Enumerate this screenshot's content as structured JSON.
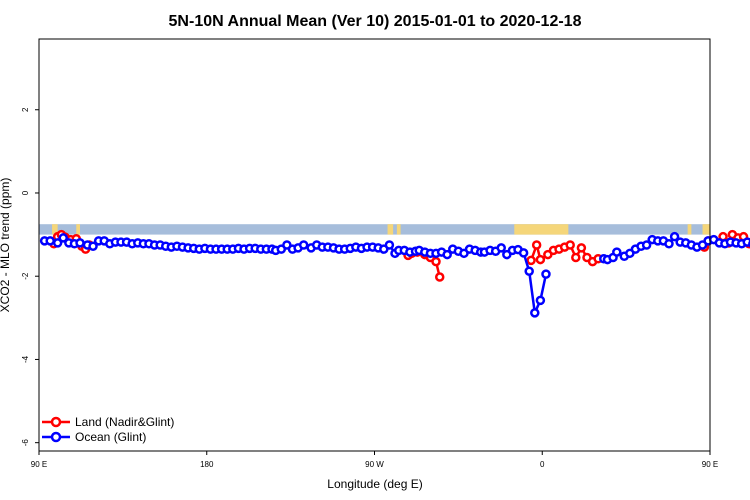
{
  "chart_data": {
    "type": "line",
    "title": "5N-10N Annual Mean (Ver 10)   2015-01-01 to 2020-12-18",
    "xlabel": "Longitude (deg E)",
    "ylabel": "XCO2 - MLO trend (ppm)",
    "xlim": [
      90,
      450
    ],
    "ylim": [
      -6.2,
      3.7
    ],
    "x_ticks": [
      {
        "value": 90,
        "label": "90 E"
      },
      {
        "value": 180,
        "label": "180"
      },
      {
        "value": 270,
        "label": "90 W"
      },
      {
        "value": 360,
        "label": "0"
      },
      {
        "value": 450,
        "label": "90 E"
      },
      {
        "value": 540,
        "label": "180"
      }
    ],
    "y_ticks": [
      {
        "value": 2,
        "label": "2"
      },
      {
        "value": 0,
        "label": "0"
      },
      {
        "value": -2,
        "label": "-2"
      },
      {
        "value": -4,
        "label": "-4"
      },
      {
        "value": -6,
        "label": "-6"
      }
    ],
    "grid": false,
    "legend_position": "bottom-left",
    "map_strip": {
      "y_range": [
        -1.0,
        -0.75
      ],
      "ocean_color": "#a6bddb",
      "land_color": "#f5d67a",
      "land_segments": [
        [
          97,
          100
        ],
        [
          110,
          112
        ],
        [
          277,
          280
        ],
        [
          282,
          284
        ],
        [
          345,
          374
        ],
        [
          438,
          440
        ],
        [
          446,
          451
        ],
        [
          463,
          467
        ]
      ]
    },
    "series": [
      {
        "name": "Land (Nadir&Glint)",
        "color": "#ff0000",
        "points": [
          [
            98,
            -1.22
          ],
          [
            100,
            -1.05
          ],
          [
            102,
            -1.0
          ],
          [
            104,
            -1.06
          ],
          [
            107,
            -1.12
          ],
          [
            110,
            -1.1
          ],
          [
            113,
            -1.28
          ],
          [
            115,
            -1.35
          ],
          [
            117,
            -1.25
          ],
          [
            288,
            -1.5
          ],
          [
            290,
            -1.45
          ],
          [
            293,
            -1.42
          ],
          [
            297,
            -1.48
          ],
          [
            300,
            -1.55
          ],
          [
            303,
            -1.65
          ],
          [
            305,
            -2.02
          ],
          [
            354,
            -1.62
          ],
          [
            357,
            -1.25
          ],
          [
            359,
            -1.6
          ],
          [
            363,
            -1.48
          ],
          [
            366,
            -1.38
          ],
          [
            369,
            -1.35
          ],
          [
            372,
            -1.3
          ],
          [
            375,
            -1.25
          ],
          [
            378,
            -1.55
          ],
          [
            381,
            -1.32
          ],
          [
            384,
            -1.55
          ],
          [
            387,
            -1.65
          ],
          [
            390,
            -1.58
          ],
          [
            447,
            -1.3
          ],
          [
            449,
            -1.15
          ],
          [
            457,
            -1.05
          ],
          [
            460,
            -1.2
          ],
          [
            462,
            -1.0
          ],
          [
            465,
            -1.08
          ],
          [
            468,
            -1.05
          ],
          [
            471,
            -1.22
          ],
          [
            474,
            -1.35
          ],
          [
            477,
            -1.25
          ]
        ]
      },
      {
        "name": "Ocean (Glint)",
        "color": "#0000ff",
        "points": [
          [
            93,
            -1.15
          ],
          [
            96,
            -1.15
          ],
          [
            100,
            -1.2
          ],
          [
            103,
            -1.08
          ],
          [
            106,
            -1.2
          ],
          [
            109,
            -1.22
          ],
          [
            112,
            -1.2
          ],
          [
            116,
            -1.25
          ],
          [
            119,
            -1.28
          ],
          [
            122,
            -1.15
          ],
          [
            125,
            -1.15
          ],
          [
            128,
            -1.22
          ],
          [
            131,
            -1.18
          ],
          [
            134,
            -1.18
          ],
          [
            137,
            -1.18
          ],
          [
            140,
            -1.22
          ],
          [
            143,
            -1.2
          ],
          [
            146,
            -1.22
          ],
          [
            149,
            -1.22
          ],
          [
            152,
            -1.25
          ],
          [
            155,
            -1.25
          ],
          [
            158,
            -1.28
          ],
          [
            161,
            -1.3
          ],
          [
            164,
            -1.28
          ],
          [
            167,
            -1.3
          ],
          [
            170,
            -1.32
          ],
          [
            173,
            -1.33
          ],
          [
            176,
            -1.35
          ],
          [
            179,
            -1.33
          ],
          [
            182,
            -1.35
          ],
          [
            185,
            -1.35
          ],
          [
            188,
            -1.35
          ],
          [
            191,
            -1.35
          ],
          [
            194,
            -1.35
          ],
          [
            197,
            -1.33
          ],
          [
            200,
            -1.35
          ],
          [
            203,
            -1.33
          ],
          [
            206,
            -1.33
          ],
          [
            209,
            -1.35
          ],
          [
            212,
            -1.35
          ],
          [
            215,
            -1.35
          ],
          [
            217,
            -1.38
          ],
          [
            220,
            -1.35
          ],
          [
            223,
            -1.25
          ],
          [
            226,
            -1.35
          ],
          [
            229,
            -1.32
          ],
          [
            232,
            -1.25
          ],
          [
            236,
            -1.32
          ],
          [
            239,
            -1.25
          ],
          [
            242,
            -1.3
          ],
          [
            245,
            -1.3
          ],
          [
            248,
            -1.32
          ],
          [
            251,
            -1.35
          ],
          [
            254,
            -1.35
          ],
          [
            257,
            -1.33
          ],
          [
            260,
            -1.3
          ],
          [
            263,
            -1.33
          ],
          [
            266,
            -1.3
          ],
          [
            269,
            -1.3
          ],
          [
            272,
            -1.32
          ],
          [
            275,
            -1.35
          ],
          [
            278,
            -1.25
          ],
          [
            281,
            -1.45
          ],
          [
            283,
            -1.38
          ],
          [
            286,
            -1.38
          ],
          [
            289,
            -1.42
          ],
          [
            292,
            -1.4
          ],
          [
            294,
            -1.38
          ],
          [
            297,
            -1.42
          ],
          [
            300,
            -1.45
          ],
          [
            303,
            -1.45
          ],
          [
            306,
            -1.42
          ],
          [
            309,
            -1.48
          ],
          [
            312,
            -1.35
          ],
          [
            315,
            -1.4
          ],
          [
            318,
            -1.45
          ],
          [
            321,
            -1.35
          ],
          [
            324,
            -1.38
          ],
          [
            327,
            -1.42
          ],
          [
            329,
            -1.42
          ],
          [
            332,
            -1.38
          ],
          [
            335,
            -1.4
          ],
          [
            338,
            -1.32
          ],
          [
            341,
            -1.48
          ],
          [
            344,
            -1.38
          ],
          [
            347,
            -1.36
          ],
          [
            350,
            -1.44
          ],
          [
            353,
            -1.88
          ],
          [
            356,
            -2.88
          ],
          [
            359,
            -2.58
          ],
          [
            362,
            -1.95
          ],
          [
            393,
            -1.58
          ],
          [
            395,
            -1.6
          ],
          [
            398,
            -1.55
          ],
          [
            400,
            -1.42
          ],
          [
            404,
            -1.52
          ],
          [
            407,
            -1.45
          ],
          [
            410,
            -1.35
          ],
          [
            413,
            -1.28
          ],
          [
            416,
            -1.25
          ],
          [
            419,
            -1.12
          ],
          [
            422,
            -1.15
          ],
          [
            425,
            -1.15
          ],
          [
            428,
            -1.22
          ],
          [
            431,
            -1.05
          ],
          [
            434,
            -1.18
          ],
          [
            437,
            -1.2
          ],
          [
            440,
            -1.25
          ],
          [
            443,
            -1.3
          ],
          [
            446,
            -1.25
          ],
          [
            449,
            -1.15
          ],
          [
            452,
            -1.12
          ],
          [
            455,
            -1.2
          ],
          [
            458,
            -1.22
          ],
          [
            461,
            -1.18
          ],
          [
            464,
            -1.2
          ],
          [
            467,
            -1.22
          ],
          [
            470,
            -1.18
          ],
          [
            473,
            -1.22
          ],
          [
            476,
            -1.25
          ]
        ]
      }
    ]
  }
}
